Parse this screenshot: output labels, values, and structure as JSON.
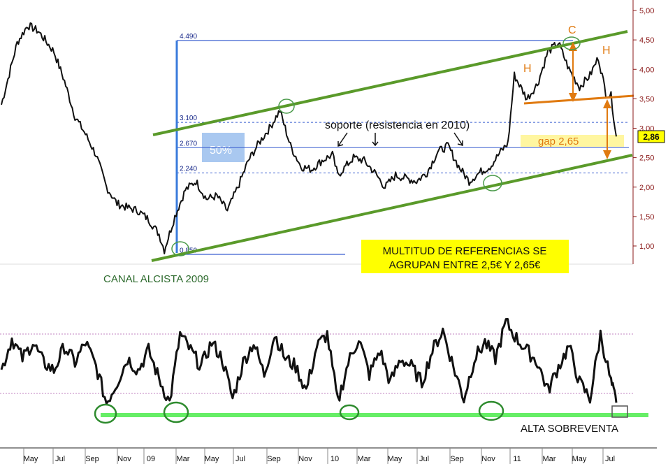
{
  "chart_data": {
    "type": "line",
    "price_axis": {
      "ticks": [
        "5,00",
        "4,50",
        "4,00",
        "3,50",
        "3,00",
        "2,50",
        "2,00",
        "1,50",
        "1,00"
      ],
      "values": [
        5.0,
        4.5,
        4.0,
        3.5,
        3.0,
        2.5,
        2.0,
        1.5,
        1.0
      ],
      "last_price_label": "2,86"
    },
    "time_axis": {
      "labels": [
        "May",
        "Jul",
        "Sep",
        "Nov",
        "09",
        "Mar",
        "May",
        "Jul",
        "Sep",
        "Nov",
        "10",
        "Mar",
        "May",
        "Jul",
        "Sep",
        "Nov",
        "11",
        "Mar",
        "May",
        "Jul"
      ]
    },
    "price_series": {
      "name": "",
      "keypoints": [
        [
          0,
          3.4
        ],
        [
          1.5,
          4.45
        ],
        [
          2.5,
          4.75
        ],
        [
          3.5,
          4.65
        ],
        [
          5,
          4.3
        ],
        [
          6,
          3.8
        ],
        [
          7,
          3.2
        ],
        [
          8,
          2.9
        ],
        [
          9,
          2.55
        ],
        [
          10,
          2.0
        ],
        [
          11,
          1.72
        ],
        [
          12,
          1.65
        ],
        [
          13,
          1.6
        ],
        [
          14,
          1.45
        ],
        [
          15,
          1.2
        ],
        [
          15.5,
          0.93
        ],
        [
          16.5,
          1.5
        ],
        [
          17.5,
          1.95
        ],
        [
          18.5,
          2.1
        ],
        [
          19.5,
          1.8
        ],
        [
          20.5,
          1.85
        ],
        [
          21.5,
          1.6
        ],
        [
          22.5,
          2.0
        ],
        [
          23.5,
          2.45
        ],
        [
          24.5,
          2.75
        ],
        [
          25.5,
          3.0
        ],
        [
          26.5,
          3.3
        ],
        [
          27,
          3.0
        ],
        [
          27.5,
          2.7
        ],
        [
          28.5,
          2.35
        ],
        [
          29.5,
          2.3
        ],
        [
          30.5,
          2.45
        ],
        [
          31.5,
          2.55
        ],
        [
          32,
          2.2
        ],
        [
          32.5,
          2.3
        ],
        [
          33.5,
          2.5
        ],
        [
          34.5,
          2.45
        ],
        [
          35.5,
          2.25
        ],
        [
          36.5,
          2.0
        ],
        [
          37.5,
          2.2
        ],
        [
          38.5,
          2.15
        ],
        [
          39.5,
          2.1
        ],
        [
          40.5,
          2.25
        ],
        [
          41.5,
          2.6
        ],
        [
          42.5,
          2.7
        ],
        [
          43.5,
          2.35
        ],
        [
          44.5,
          2.1
        ],
        [
          45.5,
          2.25
        ],
        [
          46.5,
          2.35
        ],
        [
          47.5,
          2.6
        ],
        [
          48.2,
          2.75
        ],
        [
          48.8,
          3.9
        ],
        [
          50,
          3.5
        ],
        [
          51,
          3.75
        ],
        [
          52,
          4.3
        ],
        [
          53,
          4.45
        ],
        [
          54,
          4.0
        ],
        [
          55,
          3.7
        ],
        [
          56,
          3.9
        ],
        [
          56.8,
          4.2
        ],
        [
          57.5,
          3.6
        ],
        [
          58,
          3.55
        ],
        [
          58.5,
          2.86
        ]
      ]
    },
    "oscillator_series": {
      "name": "",
      "keypoints": [
        [
          0,
          0.45
        ],
        [
          1,
          0.85
        ],
        [
          2,
          0.6
        ],
        [
          3,
          0.8
        ],
        [
          4,
          0.55
        ],
        [
          5,
          0.45
        ],
        [
          6,
          0.75
        ],
        [
          7,
          0.55
        ],
        [
          8,
          0.8
        ],
        [
          9,
          0.5
        ],
        [
          10,
          0.05
        ],
        [
          11,
          0.3
        ],
        [
          12,
          0.6
        ],
        [
          13,
          0.45
        ],
        [
          14,
          0.7
        ],
        [
          15,
          0.35
        ],
        [
          16,
          0.05
        ],
        [
          17,
          0.9
        ],
        [
          18,
          0.7
        ],
        [
          19,
          0.5
        ],
        [
          20,
          0.8
        ],
        [
          21,
          0.6
        ],
        [
          22,
          0.1
        ],
        [
          23,
          0.55
        ],
        [
          24,
          0.8
        ],
        [
          25,
          0.4
        ],
        [
          26,
          0.9
        ],
        [
          27,
          0.6
        ],
        [
          28,
          0.5
        ],
        [
          29,
          0.2
        ],
        [
          30,
          0.75
        ],
        [
          31,
          0.9
        ],
        [
          32,
          0.05
        ],
        [
          33,
          0.55
        ],
        [
          34,
          0.85
        ],
        [
          35,
          0.4
        ],
        [
          36,
          0.7
        ],
        [
          37,
          0.3
        ],
        [
          38,
          0.6
        ],
        [
          39,
          0.5
        ],
        [
          40,
          0.3
        ],
        [
          41,
          0.7
        ],
        [
          42,
          0.95
        ],
        [
          43,
          0.5
        ],
        [
          44,
          0.1
        ],
        [
          45,
          0.6
        ],
        [
          46,
          0.8
        ],
        [
          47,
          0.6
        ],
        [
          48,
          1.05
        ],
        [
          49,
          0.85
        ],
        [
          50,
          0.7
        ],
        [
          51,
          0.55
        ],
        [
          52,
          0.2
        ],
        [
          53,
          0.5
        ],
        [
          54,
          0.75
        ],
        [
          55,
          0.3
        ],
        [
          56,
          0.1
        ],
        [
          57,
          0.9
        ],
        [
          58,
          0.3
        ],
        [
          58.5,
          0.05
        ]
      ],
      "guide_levels": [
        0.9,
        0.05
      ]
    },
    "price_levels": [
      {
        "label": "4.490",
        "value": 4.49
      },
      {
        "label": "3.100",
        "value": 3.1
      },
      {
        "label": "2.670",
        "value": 2.67
      },
      {
        "label": "2.240",
        "value": 2.24
      },
      {
        "label": "0.850",
        "value": 0.85
      }
    ],
    "annotations": {
      "fib_50_label": "50%",
      "soporte_label": "soporte (resistencia en 2010)",
      "gap_label": "gap 2,65",
      "pattern_labels": {
        "left_shoulder": "H",
        "head": "C",
        "right_shoulder": "H"
      },
      "channel_label": "CANAL ALCISTA 2009",
      "box_line1": "MULTITUD DE REFERENCIAS SE",
      "box_line2": "AGRUPAN ENTRE 2,5€ Y 2,65€",
      "oversold_label": "ALTA SOBREVENTA"
    },
    "colors": {
      "price": "#111111",
      "channel": "#5a9a2a",
      "fib": "#3a5fd0",
      "neckline": "#e07a10",
      "callout_box": "#ffff00",
      "gap_box": "#fff6a0",
      "fib_box": "#a9c8f0",
      "oversold_bar": "#66ee66",
      "oversold_circle": "#2e8b2e",
      "axis_text": "#8b1a1a"
    }
  }
}
